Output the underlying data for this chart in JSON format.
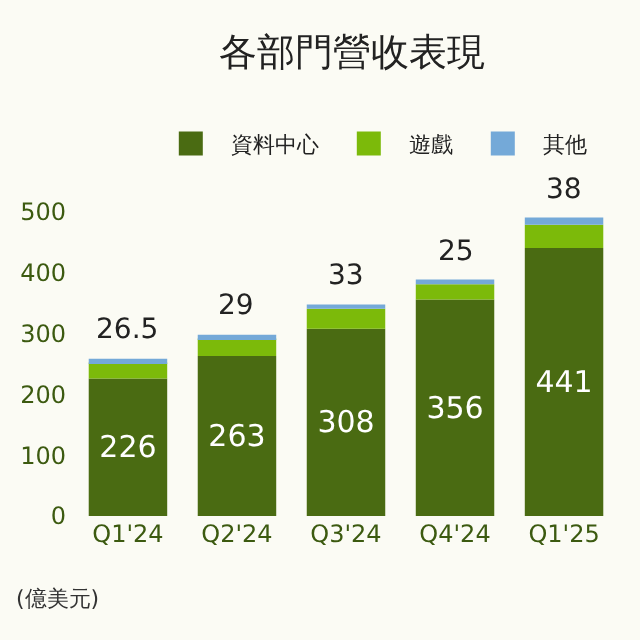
{
  "chart_data": {
    "type": "bar",
    "title": "各部門營收表現",
    "stacked": true,
    "categories": [
      "Q1'24",
      "Q2'24",
      "Q3'24",
      "Q4'24",
      "Q1'25"
    ],
    "series": [
      {
        "name": "資料中心",
        "color": "#4a6b12",
        "values": [
          226,
          263,
          308,
          356,
          441
        ],
        "value_labels": [
          "226",
          "263",
          "308",
          "356",
          "441"
        ]
      },
      {
        "name": "遊戲",
        "color": "#7cba0a",
        "values": [
          26.5,
          29,
          33,
          25,
          38
        ],
        "value_labels": [
          "26.5",
          "29",
          "33",
          "25",
          "38"
        ]
      },
      {
        "name": "其他",
        "color": "#74a9d8",
        "values": [
          6,
          6,
          7,
          8,
          12
        ]
      }
    ],
    "ylim": [
      0,
      500
    ],
    "yticks": [
      0,
      100,
      200,
      300,
      400,
      500
    ],
    "grid": false,
    "legend": "top",
    "annotations": [
      "(億美元)"
    ]
  }
}
